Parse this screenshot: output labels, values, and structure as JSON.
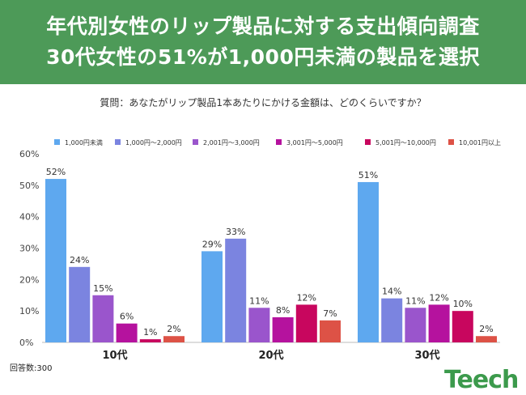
{
  "header": {
    "title_line1": "年代別女性のリップ製品に対する支出傾向調査",
    "title_line2": "30代女性の51%が1,000円未満の製品を選択"
  },
  "question": "質問：あなたがリップ製品1本あたりにかける金額は、どのくらいですか？",
  "footnote": "回答数:300",
  "logo": {
    "text": "Teech"
  },
  "colors": {
    "header_bg": "#4d9a58",
    "series": [
      "#5ea8ef",
      "#7b84e0",
      "#9a55cc",
      "#b5129e",
      "#c8065e",
      "#dd5246"
    ]
  },
  "chart_data": {
    "type": "bar",
    "title": "",
    "xlabel": "",
    "ylabel": "",
    "categories": [
      "10代",
      "20代",
      "30代"
    ],
    "ylim": [
      0,
      60
    ],
    "yticks": [
      "0%",
      "10%",
      "20%",
      "30%",
      "40%",
      "50%",
      "60%"
    ],
    "legend_position": "top",
    "grid": false,
    "series": [
      {
        "name": "1,000円未満",
        "values": [
          52,
          29,
          51
        ],
        "labels": [
          "52%",
          "29%",
          "51%"
        ]
      },
      {
        "name": "1,000円〜2,000円",
        "values": [
          24,
          33,
          14
        ],
        "labels": [
          "24%",
          "33%",
          "14%"
        ]
      },
      {
        "name": "2,001円〜3,000円",
        "values": [
          15,
          11,
          11
        ],
        "labels": [
          "15%",
          "11%",
          "11%"
        ]
      },
      {
        "name": "3,001円〜5,000円",
        "values": [
          6,
          8,
          12
        ],
        "labels": [
          "6%",
          "8%",
          "12%"
        ]
      },
      {
        "name": "5,001円〜10,000円",
        "values": [
          1,
          12,
          10
        ],
        "labels": [
          "1%",
          "12%",
          "10%"
        ]
      },
      {
        "name": "10,001円以上",
        "values": [
          2,
          7,
          2
        ],
        "labels": [
          "2%",
          "7%",
          "2%"
        ]
      }
    ]
  }
}
